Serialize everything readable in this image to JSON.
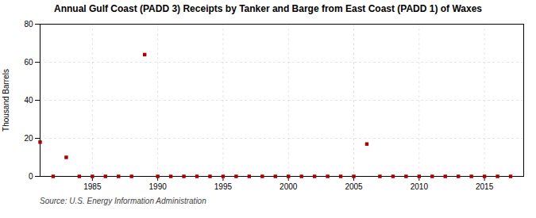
{
  "chart_data": {
    "type": "scatter",
    "title": "Annual Gulf Coast (PADD 3) Receipts by Tanker and Barge from East Coast (PADD 1) of Waxes",
    "ylabel": "Thousand Barrels",
    "caption": "Source: U.S. Energy Information Administration",
    "x": [
      1981,
      1982,
      1983,
      1984,
      1985,
      1986,
      1987,
      1988,
      1989,
      1990,
      1991,
      1992,
      1993,
      1994,
      1995,
      1996,
      1997,
      1998,
      1999,
      2000,
      2001,
      2002,
      2003,
      2004,
      2005,
      2006,
      2007,
      2008,
      2009,
      2010,
      2011,
      2012,
      2013,
      2014,
      2015,
      2016,
      2017
    ],
    "values": [
      18,
      0,
      10,
      0,
      0,
      0,
      0,
      0,
      64,
      0,
      0,
      0,
      0,
      0,
      0,
      0,
      0,
      0,
      0,
      0,
      0,
      0,
      0,
      0,
      0,
      17,
      0,
      0,
      0,
      0,
      0,
      0,
      0,
      0,
      0,
      0,
      0
    ],
    "color": "#aa0000",
    "marker": "square",
    "xlim": [
      1981,
      2018
    ],
    "xticks": [
      1985,
      1990,
      1995,
      2000,
      2005,
      2010,
      2015
    ],
    "ylim": [
      0,
      80
    ],
    "yticks": [
      0,
      20,
      40,
      60,
      80
    ],
    "grid": true
  }
}
